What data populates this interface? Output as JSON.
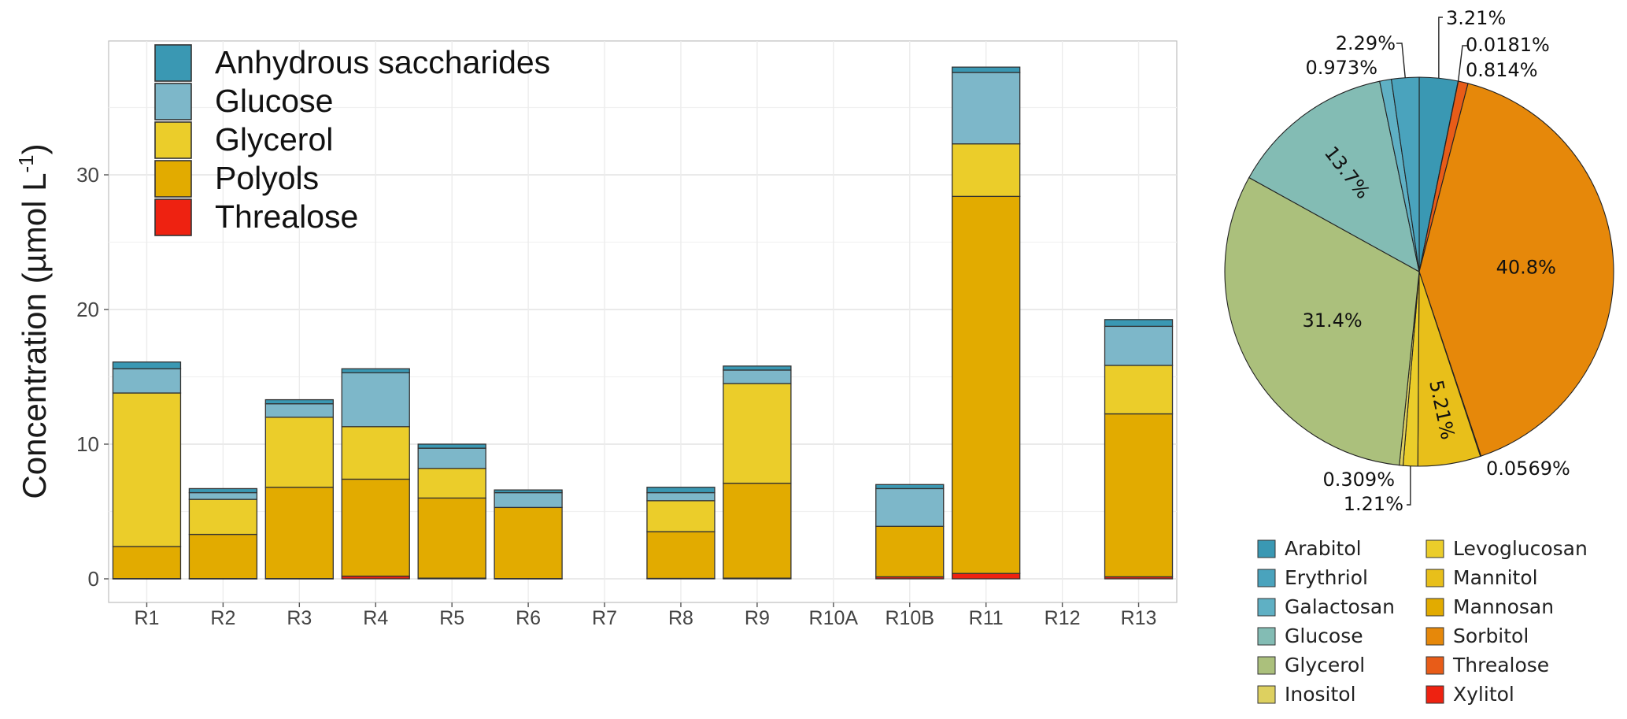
{
  "chart_data": [
    {
      "type": "bar",
      "stacked": true,
      "ylabel": "Concentration (µmol L",
      "ylabel_sup": "-1",
      "ylabel_close": ")",
      "xlabel": "",
      "ylim": [
        0,
        40
      ],
      "yticks": [
        "0",
        "10",
        "20",
        "30"
      ],
      "grid": true,
      "legend_position": "top-left",
      "categories": [
        "R1",
        "R2",
        "R3",
        "R4",
        "R5",
        "R6",
        "R7",
        "R8",
        "R9",
        "R10A",
        "R10B",
        "R11",
        "R12",
        "R13"
      ],
      "series": [
        {
          "name": "Threalose",
          "color": "#ee2211",
          "values": [
            0.02,
            0.02,
            0.02,
            0.2,
            0.05,
            0.02,
            0,
            0.03,
            0.05,
            0,
            0.15,
            0.4,
            0,
            0.15
          ]
        },
        {
          "name": "Polyols",
          "color": "#e2ab00",
          "values": [
            2.38,
            3.28,
            6.78,
            7.2,
            5.95,
            5.28,
            0,
            3.47,
            7.05,
            0,
            3.75,
            28.0,
            0,
            12.1
          ]
        },
        {
          "name": "Glycerol",
          "color": "#ebcd2a",
          "values": [
            11.4,
            2.6,
            5.2,
            3.9,
            2.2,
            0,
            0,
            2.3,
            7.4,
            0,
            0,
            3.9,
            0,
            3.6
          ]
        },
        {
          "name": "Glucose",
          "color": "#7db7c9",
          "values": [
            1.8,
            0.5,
            1.0,
            4.0,
            1.5,
            1.1,
            0,
            0.6,
            1.0,
            0,
            2.8,
            5.3,
            0,
            2.9
          ]
        },
        {
          "name": "Anhydrous saccharides",
          "color": "#3a98b3",
          "values": [
            0.5,
            0.3,
            0.3,
            0.3,
            0.3,
            0.2,
            0,
            0.4,
            0.3,
            0,
            0.3,
            0.4,
            0,
            0.5
          ]
        }
      ],
      "legend_order": [
        "Anhydrous saccharides",
        "Glucose",
        "Glycerol",
        "Polyols",
        "Threalose"
      ]
    },
    {
      "type": "pie",
      "start": "top",
      "direction": "clockwise",
      "slices": [
        {
          "name": "Arabitol",
          "value": 3.21,
          "label": "3.21%",
          "color": "#3a98b3"
        },
        {
          "name": "Threalose",
          "value": 0.0181,
          "label": "0.0181%",
          "color": "#e85c18"
        },
        {
          "name": "Threalose",
          "value": 0.814,
          "label": "0.814%",
          "color": "#e85c18"
        },
        {
          "name": "Sorbitol",
          "value": 40.8,
          "label": "40.8%",
          "color": "#e6880a"
        },
        {
          "name": "Mannosan",
          "value": 0.0569,
          "label": "0.0569%",
          "color": "#e2ab00"
        },
        {
          "name": "Mannitol",
          "value": 5.21,
          "label": "5.21%",
          "color": "#e8bf1a"
        },
        {
          "name": "Levoglucosan",
          "value": 1.21,
          "label": "1.21%",
          "color": "#ebcd2a"
        },
        {
          "name": "Inositol",
          "value": 0.309,
          "label": "0.309%",
          "color": "#ddd060"
        },
        {
          "name": "Glycerol",
          "value": 31.4,
          "label": "31.4%",
          "color": "#abc07c"
        },
        {
          "name": "Glucose",
          "value": 13.7,
          "label": "13.7%",
          "color": "#83bcb4"
        },
        {
          "name": "Galactosan",
          "value": 0.973,
          "label": "0.973%",
          "color": "#5fb0c4"
        },
        {
          "name": "Erythriol",
          "value": 2.29,
          "label": "2.29%",
          "color": "#4aa3bd"
        }
      ],
      "legend": [
        {
          "name": "Arabitol",
          "color": "#3a98b3"
        },
        {
          "name": "Erythriol",
          "color": "#4aa3bd"
        },
        {
          "name": "Galactosan",
          "color": "#5fb0c4"
        },
        {
          "name": "Glucose",
          "color": "#83bcb4"
        },
        {
          "name": "Glycerol",
          "color": "#abc07c"
        },
        {
          "name": "Inositol",
          "color": "#ddd060"
        },
        {
          "name": "Levoglucosan",
          "color": "#ebcd2a"
        },
        {
          "name": "Mannitol",
          "color": "#e8bf1a"
        },
        {
          "name": "Mannosan",
          "color": "#e2ab00"
        },
        {
          "name": "Sorbitol",
          "color": "#e6880a"
        },
        {
          "name": "Threalose",
          "color": "#e85c18"
        },
        {
          "name": "Xylitol",
          "color": "#ee2211"
        }
      ],
      "legend_position": "bottom"
    }
  ]
}
